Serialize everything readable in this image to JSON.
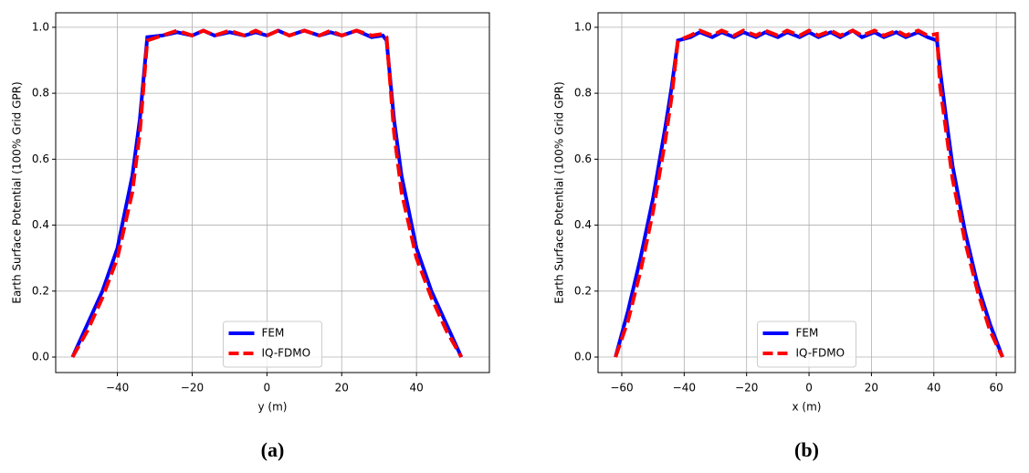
{
  "chart_data": [
    {
      "type": "line",
      "caption": "(a)",
      "xlabel": "y (m)",
      "ylabel": "Earth Surface Potential (100% Grid GPR)",
      "x": [
        -52,
        -48,
        -44,
        -40,
        -36,
        -34,
        -32,
        -28,
        -24,
        -20,
        -17,
        -14,
        -10,
        -6,
        -3,
        0,
        3,
        6,
        10,
        14,
        17,
        20,
        24,
        28,
        31,
        32,
        34,
        36,
        40,
        44,
        48,
        52
      ],
      "series": [
        {
          "name": "FEM",
          "color": "#0000ff",
          "style": "solid",
          "values": [
            0,
            0.1,
            0.2,
            0.33,
            0.55,
            0.72,
            0.97,
            0.975,
            0.985,
            0.975,
            0.99,
            0.975,
            0.985,
            0.975,
            0.985,
            0.975,
            0.99,
            0.975,
            0.99,
            0.975,
            0.985,
            0.975,
            0.99,
            0.97,
            0.975,
            0.96,
            0.72,
            0.55,
            0.33,
            0.2,
            0.1,
            0
          ]
        },
        {
          "name": "IQ-FDMO",
          "color": "#ff0000",
          "style": "dashed",
          "values": [
            0,
            0.08,
            0.18,
            0.3,
            0.5,
            0.68,
            0.96,
            0.975,
            0.99,
            0.975,
            0.99,
            0.975,
            0.99,
            0.975,
            0.99,
            0.975,
            0.99,
            0.975,
            0.99,
            0.975,
            0.99,
            0.975,
            0.99,
            0.975,
            0.98,
            0.97,
            0.68,
            0.5,
            0.3,
            0.18,
            0.08,
            0
          ]
        }
      ],
      "xlim": [
        -56.5,
        59.5
      ],
      "ylim": [
        -0.047,
        1.044
      ],
      "xticks": [
        {
          "value": -40,
          "label": "−40"
        },
        {
          "value": -20,
          "label": "−20"
        },
        0,
        20,
        40
      ],
      "yticks": [
        {
          "value": 0,
          "label": "0.0"
        },
        0.2,
        0.4,
        0.6,
        0.8,
        {
          "value": 1,
          "label": "1.0"
        }
      ],
      "grid": true,
      "legend": "lower center"
    },
    {
      "type": "line",
      "caption": "(b)",
      "xlabel": "x (m)",
      "ylabel": "Earth Surface Potential (100% Grid GPR)",
      "x": [
        -62,
        -58,
        -54,
        -50,
        -46,
        -44,
        -42,
        -38,
        -35,
        -31,
        -28,
        -24,
        -21,
        -17,
        -14,
        -10,
        -7,
        -3,
        0,
        3,
        7,
        10,
        14,
        17,
        21,
        24,
        28,
        31,
        35,
        38,
        41,
        42,
        44,
        46,
        50,
        54,
        58,
        62
      ],
      "series": [
        {
          "name": "FEM",
          "color": "#0000ff",
          "style": "solid",
          "values": [
            0,
            0.14,
            0.3,
            0.48,
            0.7,
            0.82,
            0.96,
            0.97,
            0.985,
            0.97,
            0.985,
            0.97,
            0.985,
            0.97,
            0.985,
            0.97,
            0.985,
            0.97,
            0.985,
            0.97,
            0.985,
            0.97,
            0.99,
            0.97,
            0.985,
            0.97,
            0.985,
            0.97,
            0.985,
            0.97,
            0.96,
            0.87,
            0.72,
            0.58,
            0.38,
            0.22,
            0.1,
            0
          ]
        },
        {
          "name": "IQ-FDMO",
          "color": "#ff0000",
          "style": "dashed",
          "values": [
            0,
            0.11,
            0.26,
            0.44,
            0.66,
            0.79,
            0.96,
            0.975,
            0.99,
            0.975,
            0.99,
            0.975,
            0.99,
            0.975,
            0.99,
            0.975,
            0.99,
            0.975,
            0.99,
            0.975,
            0.99,
            0.975,
            0.99,
            0.975,
            0.99,
            0.975,
            0.99,
            0.975,
            0.99,
            0.975,
            0.98,
            0.82,
            0.68,
            0.54,
            0.35,
            0.2,
            0.08,
            0
          ]
        }
      ],
      "xlim": [
        -67.6,
        66.1
      ],
      "ylim": [
        -0.047,
        1.044
      ],
      "xticks": [
        {
          "value": -60,
          "label": "−60"
        },
        {
          "value": -40,
          "label": "−40"
        },
        {
          "value": -20,
          "label": "−20"
        },
        0,
        20,
        40,
        60
      ],
      "yticks": [
        {
          "value": 0,
          "label": "0.0"
        },
        0.2,
        0.4,
        0.6,
        0.8,
        {
          "value": 1,
          "label": "1.0"
        }
      ],
      "grid": true,
      "legend": "lower center"
    }
  ]
}
